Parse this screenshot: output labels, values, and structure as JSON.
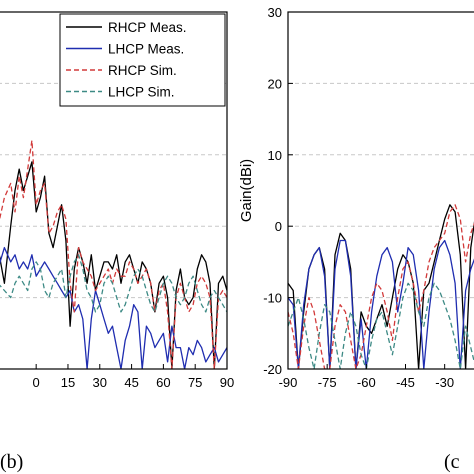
{
  "chart_data": [
    {
      "type": "line",
      "panel_label": "(b)",
      "xlabel": "",
      "ylabel": "",
      "xlim": [
        -18,
        90
      ],
      "ylim": [
        -20,
        30
      ],
      "xticks": [
        "0",
        "15",
        "30",
        "45",
        "60",
        "75",
        "90"
      ],
      "xtick_values": [
        0,
        15,
        30,
        45,
        60,
        75,
        90
      ],
      "yticks": [],
      "grid": "horizontal-dashed",
      "legend": {
        "position": "top-right",
        "entries": [
          "RHCP Meas.",
          "LHCP Meas.",
          "RHCP Sim.",
          "LHCP Sim."
        ]
      },
      "series": [
        {
          "name": "RHCP Meas.",
          "color": "#000000",
          "style": "solid",
          "x": [
            -18,
            -15,
            -12,
            -10,
            -8,
            -6,
            -4,
            -2,
            0,
            2,
            4,
            6,
            8,
            10,
            12,
            14,
            16,
            18,
            20,
            22,
            24,
            26,
            28,
            30,
            32,
            34,
            36,
            38,
            40,
            42,
            44,
            46,
            48,
            50,
            52,
            54,
            56,
            58,
            60,
            62,
            64,
            66,
            68,
            70,
            72,
            74,
            76,
            78,
            80,
            82,
            84,
            86,
            88,
            90
          ],
          "y": [
            -3,
            -8,
            0,
            5,
            8,
            5,
            7,
            9,
            2,
            4,
            7,
            -1,
            -3,
            0,
            3,
            -2,
            -14,
            -6,
            -3,
            -5,
            -8,
            -4,
            -9,
            -7,
            -5,
            -5,
            -6,
            -4,
            -8,
            -5,
            -4,
            -6,
            -8,
            -5,
            -6,
            -8,
            -12,
            -8,
            -7,
            -10,
            -20,
            -9,
            -6,
            -10,
            -11,
            -10,
            -6,
            -4,
            -5,
            -8,
            -20,
            -8,
            -7,
            -9
          ]
        },
        {
          "name": "LHCP Meas.",
          "color": "#1f2db0",
          "style": "solid",
          "x": [
            -18,
            -15,
            -12,
            -10,
            -8,
            -6,
            -4,
            -2,
            0,
            2,
            4,
            6,
            8,
            10,
            12,
            14,
            16,
            18,
            20,
            22,
            24,
            26,
            28,
            30,
            32,
            34,
            36,
            38,
            40,
            42,
            44,
            46,
            48,
            50,
            52,
            54,
            56,
            58,
            60,
            62,
            64,
            66,
            68,
            70,
            72,
            74,
            76,
            78,
            80,
            82,
            84,
            86,
            88,
            90
          ],
          "y": [
            -6,
            -3,
            -5,
            -4,
            -6,
            -5,
            -6,
            -4,
            -7,
            -6,
            -5,
            -6,
            -7,
            -8,
            -9,
            -10,
            -9,
            -12,
            -11,
            -13,
            -20,
            -13,
            -9,
            -11,
            -13,
            -15,
            -14,
            -17,
            -20,
            -16,
            -14,
            -11,
            -12,
            -20,
            -14,
            -15,
            -17,
            -16,
            -15,
            -19,
            -14,
            -17,
            -17,
            -20,
            -17,
            -18,
            -16,
            -17,
            -19,
            -18,
            -17,
            -19,
            -18,
            -17
          ]
        },
        {
          "name": "RHCP Sim.",
          "color": "#d23a3a",
          "style": "dashed",
          "x": [
            -18,
            -15,
            -12,
            -10,
            -8,
            -6,
            -4,
            -2,
            0,
            2,
            4,
            6,
            8,
            10,
            12,
            14,
            16,
            18,
            20,
            22,
            24,
            26,
            28,
            30,
            32,
            34,
            36,
            38,
            40,
            42,
            44,
            46,
            48,
            50,
            52,
            54,
            56,
            58,
            60,
            62,
            64,
            66,
            68,
            70,
            72,
            74,
            76,
            78,
            80,
            82,
            84,
            86,
            88,
            90
          ],
          "y": [
            0,
            4,
            6,
            2,
            7,
            4,
            8,
            12,
            3,
            5,
            6,
            -1,
            0,
            2,
            3,
            1,
            -8,
            -12,
            -3,
            -5,
            -6,
            -7,
            -9,
            -8,
            -7,
            -6,
            -8,
            -6,
            -7,
            -7,
            -5,
            -6,
            -8,
            -7,
            -6,
            -8,
            -12,
            -9,
            -8,
            -12,
            -20,
            -10,
            -8,
            -10,
            -12,
            -11,
            -8,
            -7,
            -8,
            -10,
            -20,
            -10,
            -9,
            -10
          ]
        },
        {
          "name": "LHCP Sim.",
          "color": "#3d8a85",
          "style": "dashed",
          "x": [
            -18,
            -15,
            -12,
            -10,
            -8,
            -6,
            -4,
            -2,
            0,
            2,
            4,
            6,
            8,
            10,
            12,
            14,
            16,
            18,
            20,
            22,
            24,
            26,
            28,
            30,
            32,
            34,
            36,
            38,
            40,
            42,
            44,
            46,
            48,
            50,
            52,
            54,
            56,
            58,
            60,
            62,
            64,
            66,
            68,
            70,
            72,
            74,
            76,
            78,
            80,
            82,
            84,
            86,
            88,
            90
          ],
          "y": [
            -8,
            -9,
            -10,
            -8,
            -7,
            -8,
            -9,
            -6,
            -5,
            -6,
            -9,
            -10,
            -8,
            -7,
            -6,
            -10,
            -7,
            -5,
            -4,
            -6,
            -9,
            -10,
            -12,
            -11,
            -8,
            -7,
            -8,
            -10,
            -12,
            -11,
            -9,
            -7,
            -6,
            -7,
            -9,
            -11,
            -12,
            -10,
            -8,
            -7,
            -8,
            -10,
            -11,
            -10,
            -8,
            -7,
            -9,
            -11,
            -12,
            -10,
            -9,
            -10,
            -11,
            -12
          ]
        }
      ]
    },
    {
      "type": "line",
      "panel_label": "(c",
      "xlabel": "",
      "ylabel": "Gain(dBi)",
      "xlim": [
        -90,
        -18
      ],
      "ylim": [
        -20,
        30
      ],
      "xticks": [
        "-90",
        "-75",
        "-60",
        "-45",
        "-30"
      ],
      "xtick_values": [
        -90,
        -75,
        -60,
        -45,
        -30
      ],
      "yticks": [
        "-20",
        "-10",
        "0",
        "10",
        "20",
        "30"
      ],
      "ytick_values": [
        -20,
        -10,
        0,
        10,
        20,
        30
      ],
      "grid": "horizontal-dashed",
      "series": [
        {
          "name": "RHCP Meas.",
          "color": "#000000",
          "style": "solid",
          "x": [
            -90,
            -88,
            -86,
            -84,
            -82,
            -80,
            -78,
            -76,
            -74,
            -72,
            -70,
            -68,
            -66,
            -64,
            -62,
            -60,
            -58,
            -56,
            -54,
            -52,
            -50,
            -48,
            -46,
            -44,
            -42,
            -40,
            -38,
            -36,
            -34,
            -32,
            -30,
            -28,
            -26,
            -24,
            -22,
            -20,
            -18
          ],
          "y": [
            -8,
            -9,
            -20,
            -12,
            -6,
            -4,
            -3,
            -6,
            -20,
            -4,
            -1,
            -2,
            -6,
            -20,
            -12,
            -14,
            -15,
            -13,
            -11,
            -14,
            -10,
            -6,
            -4,
            -5,
            -8,
            -20,
            -9,
            -8,
            -5,
            -2,
            1,
            3,
            2,
            -4,
            -20,
            -3,
            2
          ]
        },
        {
          "name": "LHCP Meas.",
          "color": "#1f2db0",
          "style": "solid",
          "x": [
            -90,
            -88,
            -86,
            -84,
            -82,
            -80,
            -78,
            -76,
            -74,
            -72,
            -70,
            -68,
            -66,
            -64,
            -62,
            -60,
            -58,
            -56,
            -54,
            -52,
            -50,
            -48,
            -46,
            -44,
            -42,
            -40,
            -38,
            -36,
            -34,
            -32,
            -30,
            -28,
            -26,
            -24,
            -22,
            -20,
            -18
          ],
          "y": [
            -10,
            -11,
            -20,
            -11,
            -6,
            -4,
            -3,
            -7,
            -20,
            -6,
            -2,
            -2,
            -7,
            -20,
            -13,
            -20,
            -12,
            -7,
            -4,
            -3,
            -5,
            -12,
            -8,
            -3,
            -4,
            -9,
            -20,
            -12,
            -6,
            -3,
            -2,
            -4,
            -8,
            -20,
            -9,
            -6,
            -4
          ]
        },
        {
          "name": "RHCP Sim.",
          "color": "#d23a3a",
          "style": "dashed",
          "x": [
            -90,
            -88,
            -86,
            -84,
            -82,
            -80,
            -78,
            -76,
            -74,
            -72,
            -70,
            -68,
            -66,
            -64,
            -62,
            -60,
            -58,
            -56,
            -54,
            -52,
            -50,
            -48,
            -46,
            -44,
            -42,
            -40,
            -38,
            -36,
            -34,
            -32,
            -30,
            -28,
            -26,
            -24,
            -22,
            -20,
            -18
          ],
          "y": [
            -12,
            -15,
            -20,
            -14,
            -10,
            -12,
            -16,
            -20,
            -20,
            -14,
            -11,
            -12,
            -16,
            -20,
            -18,
            -14,
            -10,
            -8,
            -9,
            -12,
            -16,
            -10,
            -6,
            -5,
            -8,
            -12,
            -9,
            -5,
            -3,
            -2,
            -1,
            2,
            3,
            1,
            -5,
            -1,
            1
          ]
        },
        {
          "name": "LHCP Sim.",
          "color": "#3d8a85",
          "style": "dashed",
          "x": [
            -90,
            -88,
            -86,
            -84,
            -82,
            -80,
            -78,
            -76,
            -74,
            -72,
            -70,
            -68,
            -66,
            -64,
            -62,
            -60,
            -58,
            -56,
            -54,
            -52,
            -50,
            -48,
            -46,
            -44,
            -42,
            -40,
            -38,
            -36,
            -34,
            -32,
            -30,
            -28,
            -26,
            -24,
            -22,
            -20,
            -18
          ],
          "y": [
            -14,
            -12,
            -10,
            -13,
            -17,
            -20,
            -15,
            -11,
            -12,
            -16,
            -20,
            -15,
            -12,
            -14,
            -18,
            -20,
            -16,
            -13,
            -12,
            -15,
            -18,
            -14,
            -10,
            -8,
            -9,
            -12,
            -14,
            -10,
            -8,
            -9,
            -11,
            -13,
            -16,
            -20,
            -14,
            -17,
            -20
          ]
        }
      ]
    }
  ]
}
